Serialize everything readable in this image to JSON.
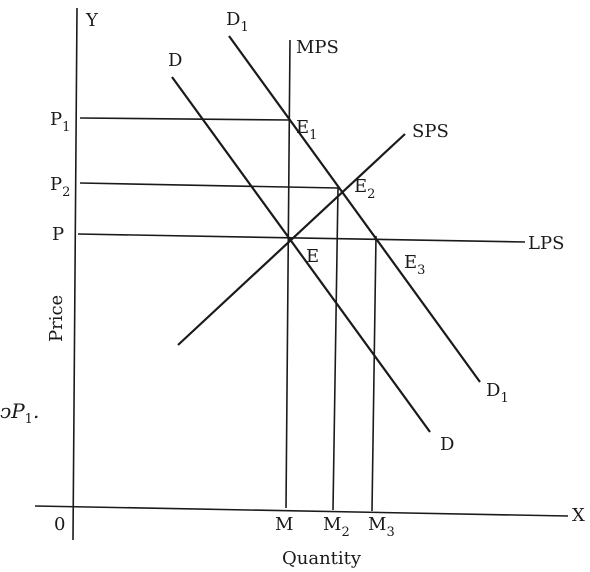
{
  "axes": {
    "y_letter": "Y",
    "x_letter": "X",
    "origin": "0",
    "y_title": "Price",
    "x_title": "Quantity"
  },
  "curves": {
    "d1_top": {
      "main": "D",
      "sub": "1"
    },
    "d_top": {
      "main": "D"
    },
    "d1_bottom": {
      "main": "D",
      "sub": "1"
    },
    "d_bottom": {
      "main": "D"
    },
    "mps": "MPS",
    "sps": "SPS",
    "lps": "LPS"
  },
  "points": {
    "e1": {
      "main": "E",
      "sub": "1"
    },
    "e2": {
      "main": "E",
      "sub": "2"
    },
    "e": {
      "main": "E"
    },
    "e3": {
      "main": "E",
      "sub": "3"
    }
  },
  "prices": {
    "p1": {
      "main": "P",
      "sub": "1"
    },
    "p2": {
      "main": "P",
      "sub": "2"
    },
    "p": {
      "main": "P"
    }
  },
  "quantities": {
    "m": {
      "main": "M"
    },
    "m2": {
      "main": "M",
      "sub": "2"
    },
    "m3": {
      "main": "M",
      "sub": "3"
    }
  },
  "fragment_text": {
    "main": "ↄP",
    "sub": "1",
    "tail": "."
  }
}
